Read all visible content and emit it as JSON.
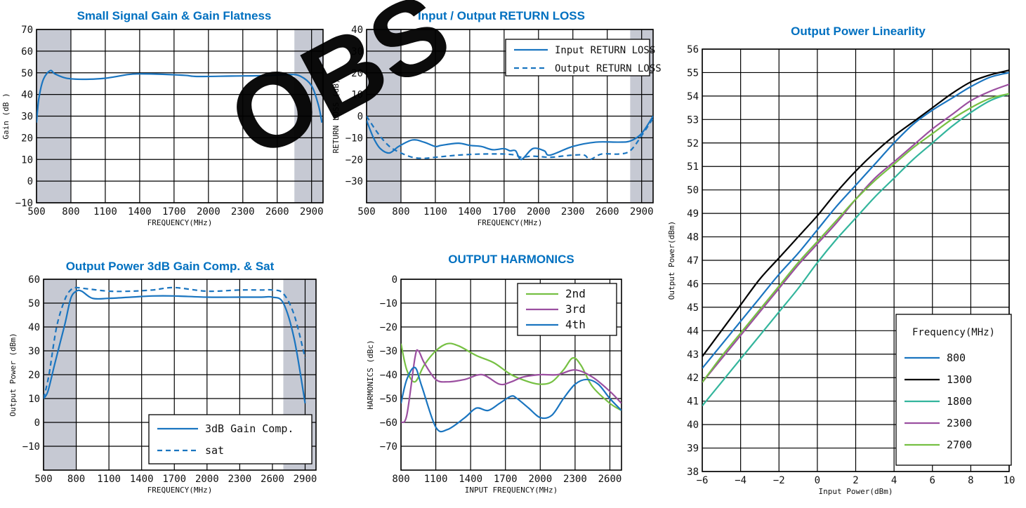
{
  "chart_data": [
    {
      "id": "gain",
      "type": "line",
      "title": "Small Signal Gain & Gain Flatness",
      "xlabel": "FREQUENCY(MHz)",
      "ylabel": "Gain (dB )",
      "xlim": [
        500,
        3000
      ],
      "ylim": [
        -10,
        70
      ],
      "xticks": [
        500,
        800,
        1100,
        1400,
        1700,
        2000,
        2300,
        2600,
        2900
      ],
      "xtick_labels": [
        "500",
        "800",
        "1100",
        "1400",
        "1700",
        "2000",
        "2300",
        "2600",
        "2900"
      ],
      "yticks": [
        -10,
        0,
        10,
        20,
        30,
        40,
        50,
        60,
        70
      ],
      "ytick_labels": [
        "−10",
        "0",
        "10",
        "20",
        "30",
        "40",
        "50",
        "60",
        "70"
      ],
      "shaded_ranges": [
        [
          500,
          800
        ],
        [
          2750,
          3000
        ]
      ],
      "grid": true,
      "series": [
        {
          "color": "#1a75c0",
          "dash": false,
          "x": [
            500,
            520,
            560,
            620,
            660,
            760,
            900,
            1100,
            1300,
            1400,
            1600,
            1800,
            1900,
            2200,
            2500,
            2700,
            2800,
            2900,
            2960,
            2990
          ],
          "y": [
            27,
            38,
            47,
            51,
            49.5,
            47.5,
            47,
            47.5,
            49.2,
            49.5,
            49.3,
            48.8,
            48.3,
            48.5,
            48.7,
            49.2,
            48.5,
            44,
            35,
            27
          ]
        }
      ]
    },
    {
      "id": "returnloss",
      "type": "line",
      "title": "Input / Output RETURN LOSS",
      "xlabel": "FREQUENCY(MHz)",
      "ylabel": "RETURN LOSS (dB)",
      "xlim": [
        500,
        3000
      ],
      "ylim": [
        -40,
        40
      ],
      "xticks": [
        500,
        800,
        1100,
        1400,
        1700,
        2000,
        2300,
        2600,
        2900
      ],
      "xtick_labels": [
        "500",
        "800",
        "1100",
        "1400",
        "1700",
        "2000",
        "2300",
        "2600",
        "2900"
      ],
      "yticks": [
        -30,
        -20,
        -10,
        0,
        10,
        20,
        30,
        40
      ],
      "ytick_labels": [
        "−30",
        "−20",
        "−10",
        "0",
        "10",
        "20",
        "30",
        "40"
      ],
      "shaded_ranges": [
        [
          500,
          800
        ],
        [
          2800,
          3000
        ]
      ],
      "grid": true,
      "legend_position": "top-right",
      "series": [
        {
          "name": "Input  RETURN LOSS",
          "color": "#1a75c0",
          "dash": false,
          "x": [
            500,
            560,
            620,
            700,
            780,
            900,
            1000,
            1100,
            1150,
            1300,
            1400,
            1500,
            1600,
            1700,
            1750,
            1800,
            1850,
            1950,
            2050,
            2100,
            2300,
            2500,
            2700,
            2800,
            2900,
            3000
          ],
          "y": [
            -2,
            -10,
            -15,
            -17,
            -14,
            -11,
            -12,
            -14,
            -13.5,
            -12.5,
            -13.5,
            -14,
            -15.5,
            -15,
            -16,
            -16,
            -20,
            -15,
            -16,
            -18,
            -14,
            -12,
            -12,
            -11.5,
            -8,
            0
          ]
        },
        {
          "name": "Output RETURN LOSS",
          "color": "#1a75c0",
          "dash": true,
          "x": [
            500,
            600,
            700,
            800,
            900,
            1000,
            1100,
            1300,
            1500,
            1700,
            1800,
            1850,
            1950,
            2100,
            2200,
            2300,
            2400,
            2450,
            2550,
            2700,
            2800,
            2900,
            3000
          ],
          "y": [
            0,
            -8,
            -14,
            -17,
            -19,
            -19.5,
            -19,
            -18,
            -17.5,
            -17.5,
            -18,
            -19,
            -18.5,
            -19,
            -18.5,
            -18,
            -18,
            -20,
            -17.5,
            -17.5,
            -16,
            -9,
            -1
          ]
        }
      ]
    },
    {
      "id": "satpower",
      "type": "line",
      "title": "Output Power 3dB Gain Comp. & Sat",
      "xlabel": "FREQUENCY(MHz)",
      "ylabel": "Output Power (dBm)",
      "xlim": [
        500,
        3000
      ],
      "ylim": [
        -20,
        60
      ],
      "xticks": [
        500,
        800,
        1100,
        1400,
        1700,
        2000,
        2300,
        2600,
        2900
      ],
      "xtick_labels": [
        "500",
        "800",
        "1100",
        "1400",
        "1700",
        "2000",
        "2300",
        "2600",
        "2900"
      ],
      "yticks": [
        -10,
        0,
        10,
        20,
        30,
        40,
        50,
        60
      ],
      "ytick_labels": [
        "−10",
        "0",
        "10",
        "20",
        "30",
        "40",
        "50",
        "60"
      ],
      "shaded_ranges": [
        [
          500,
          800
        ],
        [
          2700,
          3000
        ]
      ],
      "grid": true,
      "legend_position": "bottom-right",
      "series": [
        {
          "name": "3dB Gain Comp.",
          "color": "#1a75c0",
          "dash": false,
          "x": [
            500,
            540,
            600,
            650,
            700,
            750,
            800,
            850,
            950,
            1100,
            1300,
            1500,
            1700,
            2000,
            2300,
            2500,
            2600,
            2700,
            2800,
            2900
          ],
          "y": [
            10,
            13,
            24,
            33,
            42,
            52,
            55,
            55,
            52,
            52,
            52.5,
            53,
            53,
            52.5,
            52.5,
            52.5,
            52.5,
            50,
            35,
            8
          ]
        },
        {
          "name": "sat",
          "color": "#1a75c0",
          "dash": true,
          "x": [
            500,
            550,
            620,
            700,
            760,
            800,
            900,
            1100,
            1300,
            1500,
            1700,
            2000,
            2300,
            2500,
            2600,
            2700,
            2800,
            2900
          ],
          "y": [
            10,
            20,
            40,
            52,
            56,
            56.5,
            56,
            55,
            55,
            55.5,
            56.5,
            55,
            55.5,
            55.5,
            55.5,
            54,
            45,
            27
          ]
        }
      ]
    },
    {
      "id": "harmonics",
      "type": "line",
      "title": "OUTPUT HARMONICS",
      "xlabel": "INPUT FREQUENCY(MHz)",
      "ylabel": "HARMONICS (dBc)",
      "xlim": [
        800,
        2700
      ],
      "ylim": [
        -80,
        0
      ],
      "xticks": [
        800,
        1100,
        1400,
        1700,
        2000,
        2300,
        2600
      ],
      "xtick_labels": [
        "800",
        "1100",
        "1400",
        "1700",
        "2000",
        "2300",
        "2600"
      ],
      "yticks": [
        -70,
        -60,
        -50,
        -40,
        -30,
        -20,
        -10,
        0
      ],
      "ytick_labels": [
        "−70",
        "−60",
        "−50",
        "−40",
        "−30",
        "−20",
        "−10",
        "0"
      ],
      "grid": true,
      "legend_position": "top-right",
      "series": [
        {
          "name": "2nd",
          "color": "#76c043",
          "dash": false,
          "x": [
            800,
            850,
            920,
            1000,
            1100,
            1200,
            1300,
            1450,
            1600,
            1750,
            1900,
            2000,
            2100,
            2200,
            2280,
            2350,
            2450,
            2600,
            2700
          ],
          "y": [
            -27,
            -38,
            -43,
            -36,
            -30,
            -27,
            -28,
            -32,
            -35,
            -40,
            -43,
            -44,
            -43,
            -38,
            -33,
            -36,
            -45,
            -52,
            -55
          ]
        },
        {
          "name": "3rd",
          "color": "#9b4fa0",
          "dash": false,
          "x": [
            800,
            850,
            920,
            950,
            1000,
            1100,
            1200,
            1350,
            1500,
            1650,
            1750,
            1850,
            2000,
            2150,
            2300,
            2450,
            2600,
            2700
          ],
          "y": [
            -60,
            -57,
            -33,
            -30,
            -35,
            -42,
            -43,
            -42,
            -40,
            -44,
            -43,
            -41,
            -40,
            -40,
            -38,
            -41,
            -47,
            -52
          ]
        },
        {
          "name": "4th",
          "color": "#1a75c0",
          "dash": false,
          "x": [
            800,
            850,
            920,
            980,
            1100,
            1200,
            1350,
            1450,
            1550,
            1650,
            1750,
            1800,
            1900,
            2000,
            2100,
            2200,
            2300,
            2400,
            2500,
            2600,
            2700
          ],
          "y": [
            -52,
            -42,
            -37,
            -45,
            -62,
            -63,
            -58,
            -54,
            -55,
            -52,
            -49,
            -50,
            -54,
            -58,
            -57,
            -50,
            -44,
            -42,
            -44,
            -50,
            -55
          ]
        }
      ]
    },
    {
      "id": "linearity",
      "type": "line",
      "title": "Output Power Linearlity",
      "xlabel": "Input Power(dBm)",
      "ylabel": "Output Power(dBm)",
      "xlim": [
        -6,
        10
      ],
      "ylim": [
        38,
        56
      ],
      "xticks": [
        -6,
        -4,
        -2,
        0,
        2,
        4,
        6,
        8,
        10
      ],
      "xtick_labels": [
        "−6",
        "−4",
        "−2",
        "0",
        "2",
        "4",
        "6",
        "8",
        "10"
      ],
      "yticks": [
        38,
        39,
        40,
        41,
        42,
        43,
        44,
        45,
        46,
        47,
        48,
        49,
        50,
        51,
        52,
        53,
        54,
        55,
        56
      ],
      "ytick_labels": [
        "38",
        "39",
        "40",
        "41",
        "42",
        "43",
        "44",
        "45",
        "46",
        "47",
        "48",
        "49",
        "50",
        "51",
        "52",
        "53",
        "54",
        "55",
        "56"
      ],
      "grid": true,
      "legend_title": "Frequency(MHz)",
      "legend_position": "bottom-right",
      "series": [
        {
          "name": "800",
          "color": "#1a75c0",
          "dash": false,
          "x": [
            -6,
            -5,
            -4,
            -3,
            -2,
            -1,
            0,
            1,
            2,
            3,
            4,
            5,
            6,
            7,
            8,
            9,
            10
          ],
          "y": [
            42.4,
            43.4,
            44.4,
            45.4,
            46.4,
            47.3,
            48.3,
            49.3,
            50.2,
            51.1,
            52,
            52.8,
            53.4,
            53.9,
            54.4,
            54.8,
            55
          ]
        },
        {
          "name": "1300",
          "color": "#000000",
          "dash": false,
          "x": [
            -6,
            -5,
            -4,
            -3,
            -2,
            -1,
            0,
            1,
            2,
            3,
            4,
            5,
            6,
            7,
            8,
            9,
            10
          ],
          "y": [
            42.9,
            44,
            45.1,
            46.2,
            47.1,
            48,
            48.9,
            49.9,
            50.8,
            51.6,
            52.3,
            52.9,
            53.5,
            54.1,
            54.6,
            54.9,
            55.1
          ]
        },
        {
          "name": "1800",
          "color": "#33b59c",
          "dash": false,
          "x": [
            -6,
            -5,
            -4,
            -3,
            -2,
            -1,
            0,
            1,
            2,
            3,
            4,
            5,
            6,
            7,
            8,
            9,
            10
          ],
          "y": [
            40.8,
            41.8,
            42.8,
            43.8,
            44.8,
            45.8,
            46.9,
            47.9,
            48.8,
            49.7,
            50.5,
            51.3,
            52,
            52.7,
            53.3,
            53.8,
            54.1
          ]
        },
        {
          "name": "2300",
          "color": "#9b4fa0",
          "dash": false,
          "x": [
            -6,
            -5,
            -4,
            -3,
            -2,
            -1,
            0,
            1,
            2,
            3,
            4,
            5,
            6,
            7,
            8,
            9,
            10
          ],
          "y": [
            41.8,
            42.8,
            43.8,
            44.8,
            45.8,
            46.8,
            47.7,
            48.6,
            49.6,
            50.5,
            51.2,
            51.9,
            52.6,
            53.2,
            53.8,
            54.2,
            54.5
          ]
        },
        {
          "name": "2700",
          "color": "#76c043",
          "dash": false,
          "x": [
            -6,
            -5,
            -4,
            -3,
            -2,
            -1,
            0,
            1,
            2,
            3,
            4,
            5,
            6,
            7,
            8,
            9,
            10
          ],
          "y": [
            41.8,
            42.9,
            43.9,
            44.9,
            45.9,
            46.9,
            47.8,
            48.7,
            49.6,
            50.4,
            51.1,
            51.8,
            52.4,
            53,
            53.5,
            53.9,
            54.1
          ]
        }
      ]
    }
  ],
  "watermark_text": "OBS"
}
